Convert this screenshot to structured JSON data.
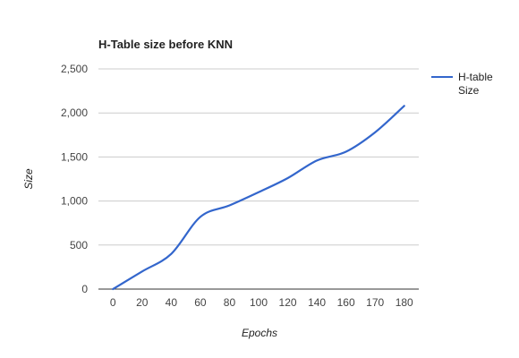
{
  "chart_data": {
    "type": "line",
    "title": "H-Table size before KNN",
    "xlabel": "Epochs",
    "ylabel": "Size",
    "categories": [
      "0",
      "20",
      "40",
      "60",
      "80",
      "100",
      "120",
      "140",
      "160",
      "170",
      "180"
    ],
    "series": [
      {
        "name": "H-table Size",
        "color": "#3366cc",
        "values": [
          0,
          200,
          400,
          820,
          950,
          1100,
          1260,
          1460,
          1560,
          1780,
          2080
        ]
      }
    ],
    "ylim": [
      0,
      2500
    ],
    "yticks": [
      0,
      500,
      1000,
      1500,
      2000,
      2500
    ],
    "ytick_labels": [
      "0",
      "500",
      "1,000",
      "1,500",
      "2,000",
      "2,500"
    ],
    "grid": true,
    "legend": {
      "position": "right",
      "lines": [
        "H-table",
        "Size"
      ]
    }
  }
}
